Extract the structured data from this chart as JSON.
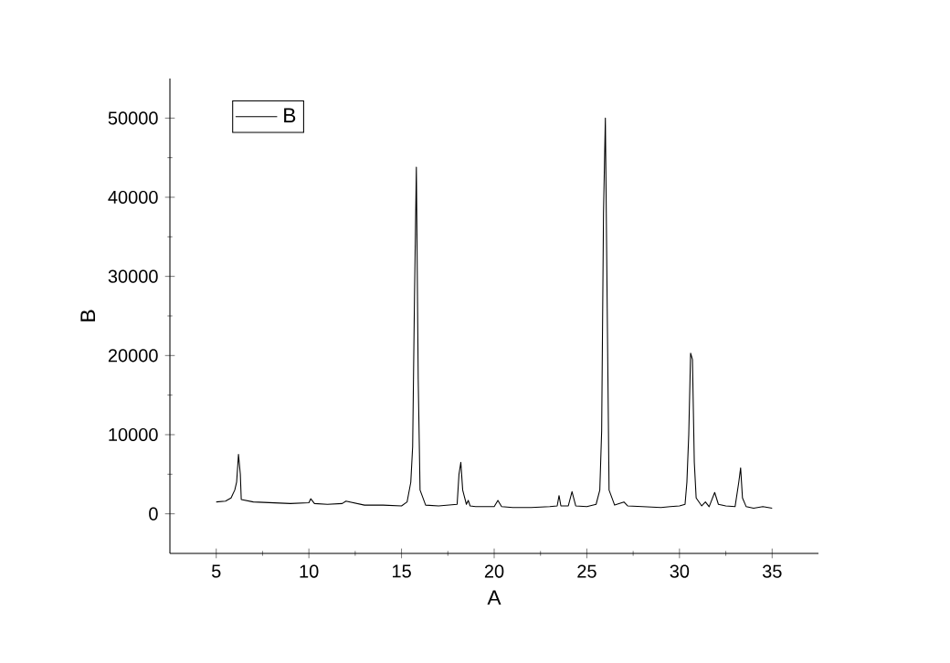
{
  "chart_data": {
    "type": "line",
    "xlabel": "A",
    "ylabel": "B",
    "xlim": [
      2.5,
      37.5
    ],
    "ylim": [
      -5000,
      55000
    ],
    "xticks": [
      5,
      10,
      15,
      20,
      25,
      30,
      35
    ],
    "yticks": [
      0,
      10000,
      20000,
      30000,
      40000,
      50000
    ],
    "legend": "top left",
    "grid": false,
    "marker": "none",
    "line_style": "solid",
    "series": [
      {
        "name": "B",
        "color": "#000000",
        "x": [
          5.0,
          5.5,
          5.8,
          6.0,
          6.1,
          6.2,
          6.3,
          6.35,
          7,
          8,
          9,
          10,
          10.1,
          10.3,
          11,
          11.8,
          12,
          13,
          14,
          15,
          15.3,
          15.5,
          15.6,
          15.7,
          15.8,
          15.9,
          16.0,
          16.3,
          17,
          18,
          18.1,
          18.2,
          18.3,
          18.5,
          18.6,
          18.7,
          19,
          20,
          20.2,
          20.4,
          21,
          22,
          23,
          23.4,
          23.5,
          23.6,
          24,
          24.2,
          24.4,
          25,
          25.5,
          25.7,
          25.8,
          25.9,
          26.0,
          26.1,
          26.2,
          26.5,
          27,
          27.2,
          28,
          29,
          29.5,
          30,
          30.3,
          30.4,
          30.5,
          30.6,
          30.7,
          30.8,
          30.9,
          31.2,
          31.4,
          31.6,
          31.9,
          32.1,
          32.5,
          33,
          33.2,
          33.3,
          33.4,
          33.6,
          34,
          34.5,
          35
        ],
        "values": [
          1500,
          1600,
          2000,
          3000,
          4000,
          7500,
          5000,
          1800,
          1500,
          1400,
          1300,
          1400,
          1900,
          1300,
          1200,
          1300,
          1600,
          1100,
          1100,
          1000,
          1500,
          4000,
          8500,
          27500,
          43800,
          17000,
          3000,
          1100,
          1000,
          1200,
          5000,
          6500,
          3000,
          1200,
          1700,
          1000,
          900,
          900,
          1700,
          900,
          800,
          800,
          900,
          1000,
          2300,
          1000,
          1000,
          2800,
          1000,
          900,
          1200,
          3000,
          10500,
          38000,
          50000,
          26000,
          3000,
          1100,
          1500,
          1000,
          900,
          800,
          900,
          1000,
          1200,
          4000,
          10000,
          20300,
          19500,
          6500,
          2000,
          1000,
          1500,
          900,
          2700,
          1200,
          1000,
          900,
          4000,
          5800,
          2000,
          900,
          700,
          900,
          700
        ]
      }
    ]
  }
}
